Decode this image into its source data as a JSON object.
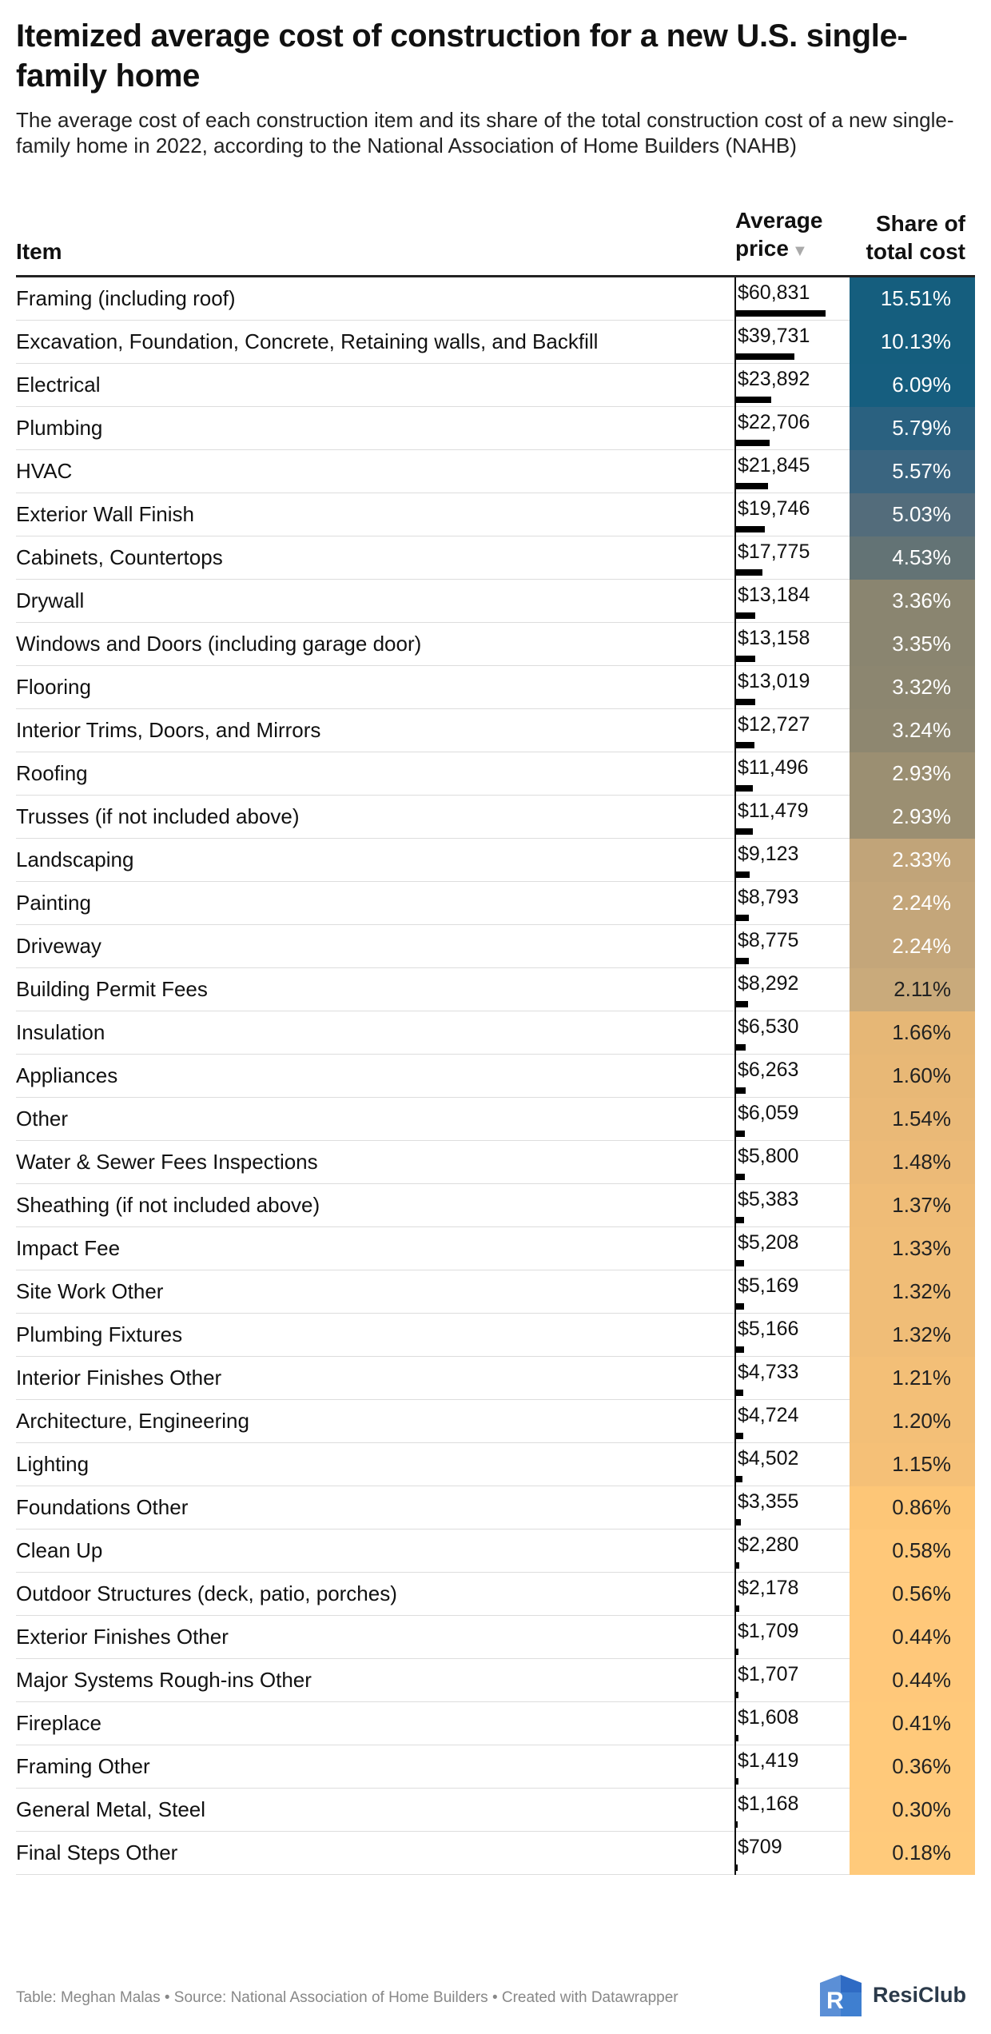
{
  "title": "Itemized average cost of construction for a new U.S. single-family home",
  "subtitle": "The average cost of each construction item and its share of the total construction cost of a new single-family home in 2022, according to the National Association of Home Builders (NAHB)",
  "headers": {
    "item": "Item",
    "price": "Average price",
    "share": "Share of total cost"
  },
  "footer": "Table: Meghan Malas • Source: National Association of Home Builders • Created with Datawrapper",
  "logo_text": "ResiClub",
  "chart_data": {
    "type": "table",
    "columns": [
      "Item",
      "Average price",
      "Share of total cost"
    ],
    "rows": [
      {
        "item": "Framing (including roof)",
        "price": 60831,
        "price_label": "$60,831",
        "share": "15.51%",
        "color": "#155e7e",
        "text": "#ffffff"
      },
      {
        "item": "Excavation, Foundation, Concrete, Retaining walls, and Backfill",
        "price": 39731,
        "price_label": "$39,731",
        "share": "10.13%",
        "color": "#155e7e",
        "text": "#ffffff"
      },
      {
        "item": "Electrical",
        "price": 23892,
        "price_label": "$23,892",
        "share": "6.09%",
        "color": "#165e7f",
        "text": "#ffffff"
      },
      {
        "item": "Plumbing",
        "price": 22706,
        "price_label": "$22,706",
        "share": "5.79%",
        "color": "#2a6180",
        "text": "#ffffff"
      },
      {
        "item": "HVAC",
        "price": 21845,
        "price_label": "$21,845",
        "share": "5.57%",
        "color": "#3a6580",
        "text": "#ffffff"
      },
      {
        "item": "Exterior Wall Finish",
        "price": 19746,
        "price_label": "$19,746",
        "share": "5.03%",
        "color": "#536c7b",
        "text": "#ffffff"
      },
      {
        "item": "Cabinets, Countertops",
        "price": 17775,
        "price_label": "$17,775",
        "share": "4.53%",
        "color": "#637375",
        "text": "#ffffff"
      },
      {
        "item": "Drywall",
        "price": 13184,
        "price_label": "$13,184",
        "share": "3.36%",
        "color": "#8a8570",
        "text": "#ffffff"
      },
      {
        "item": "Windows and Doors (including garage door)",
        "price": 13158,
        "price_label": "$13,158",
        "share": "3.35%",
        "color": "#8a8570",
        "text": "#ffffff"
      },
      {
        "item": "Flooring",
        "price": 13019,
        "price_label": "$13,019",
        "share": "3.32%",
        "color": "#8c8670",
        "text": "#ffffff"
      },
      {
        "item": "Interior Trims, Doors, and Mirrors",
        "price": 12727,
        "price_label": "$12,727",
        "share": "3.24%",
        "color": "#8e8770",
        "text": "#ffffff"
      },
      {
        "item": "Roofing",
        "price": 11496,
        "price_label": "$11,496",
        "share": "2.93%",
        "color": "#9b8f72",
        "text": "#ffffff"
      },
      {
        "item": "Trusses (if not included above)",
        "price": 11479,
        "price_label": "$11,479",
        "share": "2.93%",
        "color": "#9b8f72",
        "text": "#ffffff"
      },
      {
        "item": "Landscaping",
        "price": 9123,
        "price_label": "$9,123",
        "share": "2.33%",
        "color": "#c1a479",
        "text": "#ffffff"
      },
      {
        "item": "Painting",
        "price": 8793,
        "price_label": "$8,793",
        "share": "2.24%",
        "color": "#c4a67a",
        "text": "#ffffff"
      },
      {
        "item": "Driveway",
        "price": 8775,
        "price_label": "$8,775",
        "share": "2.24%",
        "color": "#c4a67a",
        "text": "#ffffff"
      },
      {
        "item": "Building Permit Fees",
        "price": 8292,
        "price_label": "$8,292",
        "share": "2.11%",
        "color": "#c9aa7b",
        "text": "#222222"
      },
      {
        "item": "Insulation",
        "price": 6530,
        "price_label": "$6,530",
        "share": "1.66%",
        "color": "#e6b776",
        "text": "#222222"
      },
      {
        "item": "Appliances",
        "price": 6263,
        "price_label": "$6,263",
        "share": "1.60%",
        "color": "#e8b876",
        "text": "#222222"
      },
      {
        "item": "Other",
        "price": 6059,
        "price_label": "$6,059",
        "share": "1.54%",
        "color": "#eab977",
        "text": "#222222"
      },
      {
        "item": "Water & Sewer Fees Inspections",
        "price": 5800,
        "price_label": "$5,800",
        "share": "1.48%",
        "color": "#ecba77",
        "text": "#222222"
      },
      {
        "item": "Sheathing (if not included above)",
        "price": 5383,
        "price_label": "$5,383",
        "share": "1.37%",
        "color": "#efbc77",
        "text": "#222222"
      },
      {
        "item": "Impact Fee",
        "price": 5208,
        "price_label": "$5,208",
        "share": "1.33%",
        "color": "#f0bd77",
        "text": "#222222"
      },
      {
        "item": "Site Work Other",
        "price": 5169,
        "price_label": "$5,169",
        "share": "1.32%",
        "color": "#f0bd77",
        "text": "#222222"
      },
      {
        "item": "Plumbing Fixtures",
        "price": 5166,
        "price_label": "$5,166",
        "share": "1.32%",
        "color": "#f0bd77",
        "text": "#222222"
      },
      {
        "item": "Interior Finishes Other",
        "price": 4733,
        "price_label": "$4,733",
        "share": "1.21%",
        "color": "#f3bf77",
        "text": "#222222"
      },
      {
        "item": "Architecture, Engineering",
        "price": 4724,
        "price_label": "$4,724",
        "share": "1.20%",
        "color": "#f3bf77",
        "text": "#222222"
      },
      {
        "item": "Lighting",
        "price": 4502,
        "price_label": "$4,502",
        "share": "1.15%",
        "color": "#f5c077",
        "text": "#222222"
      },
      {
        "item": "Foundations Other",
        "price": 3355,
        "price_label": "$3,355",
        "share": "0.86%",
        "color": "#fdc677",
        "text": "#222222"
      },
      {
        "item": "Clean Up",
        "price": 2280,
        "price_label": "$2,280",
        "share": "0.58%",
        "color": "#ffc879",
        "text": "#222222"
      },
      {
        "item": "Outdoor Structures (deck, patio, porches)",
        "price": 2178,
        "price_label": "$2,178",
        "share": "0.56%",
        "color": "#ffc879",
        "text": "#222222"
      },
      {
        "item": "Exterior Finishes Other",
        "price": 1709,
        "price_label": "$1,709",
        "share": "0.44%",
        "color": "#ffc87a",
        "text": "#222222"
      },
      {
        "item": "Major Systems Rough-ins Other",
        "price": 1707,
        "price_label": "$1,707",
        "share": "0.44%",
        "color": "#ffc87a",
        "text": "#222222"
      },
      {
        "item": "Fireplace",
        "price": 1608,
        "price_label": "$1,608",
        "share": "0.41%",
        "color": "#ffc97a",
        "text": "#222222"
      },
      {
        "item": "Framing Other",
        "price": 1419,
        "price_label": "$1,419",
        "share": "0.36%",
        "color": "#ffc97a",
        "text": "#222222"
      },
      {
        "item": "General Metal, Steel",
        "price": 1168,
        "price_label": "$1,168",
        "share": "0.30%",
        "color": "#ffc97b",
        "text": "#222222"
      },
      {
        "item": "Final Steps Other",
        "price": 709,
        "price_label": "$709",
        "share": "0.18%",
        "color": "#ffca7b",
        "text": "#222222"
      }
    ]
  }
}
